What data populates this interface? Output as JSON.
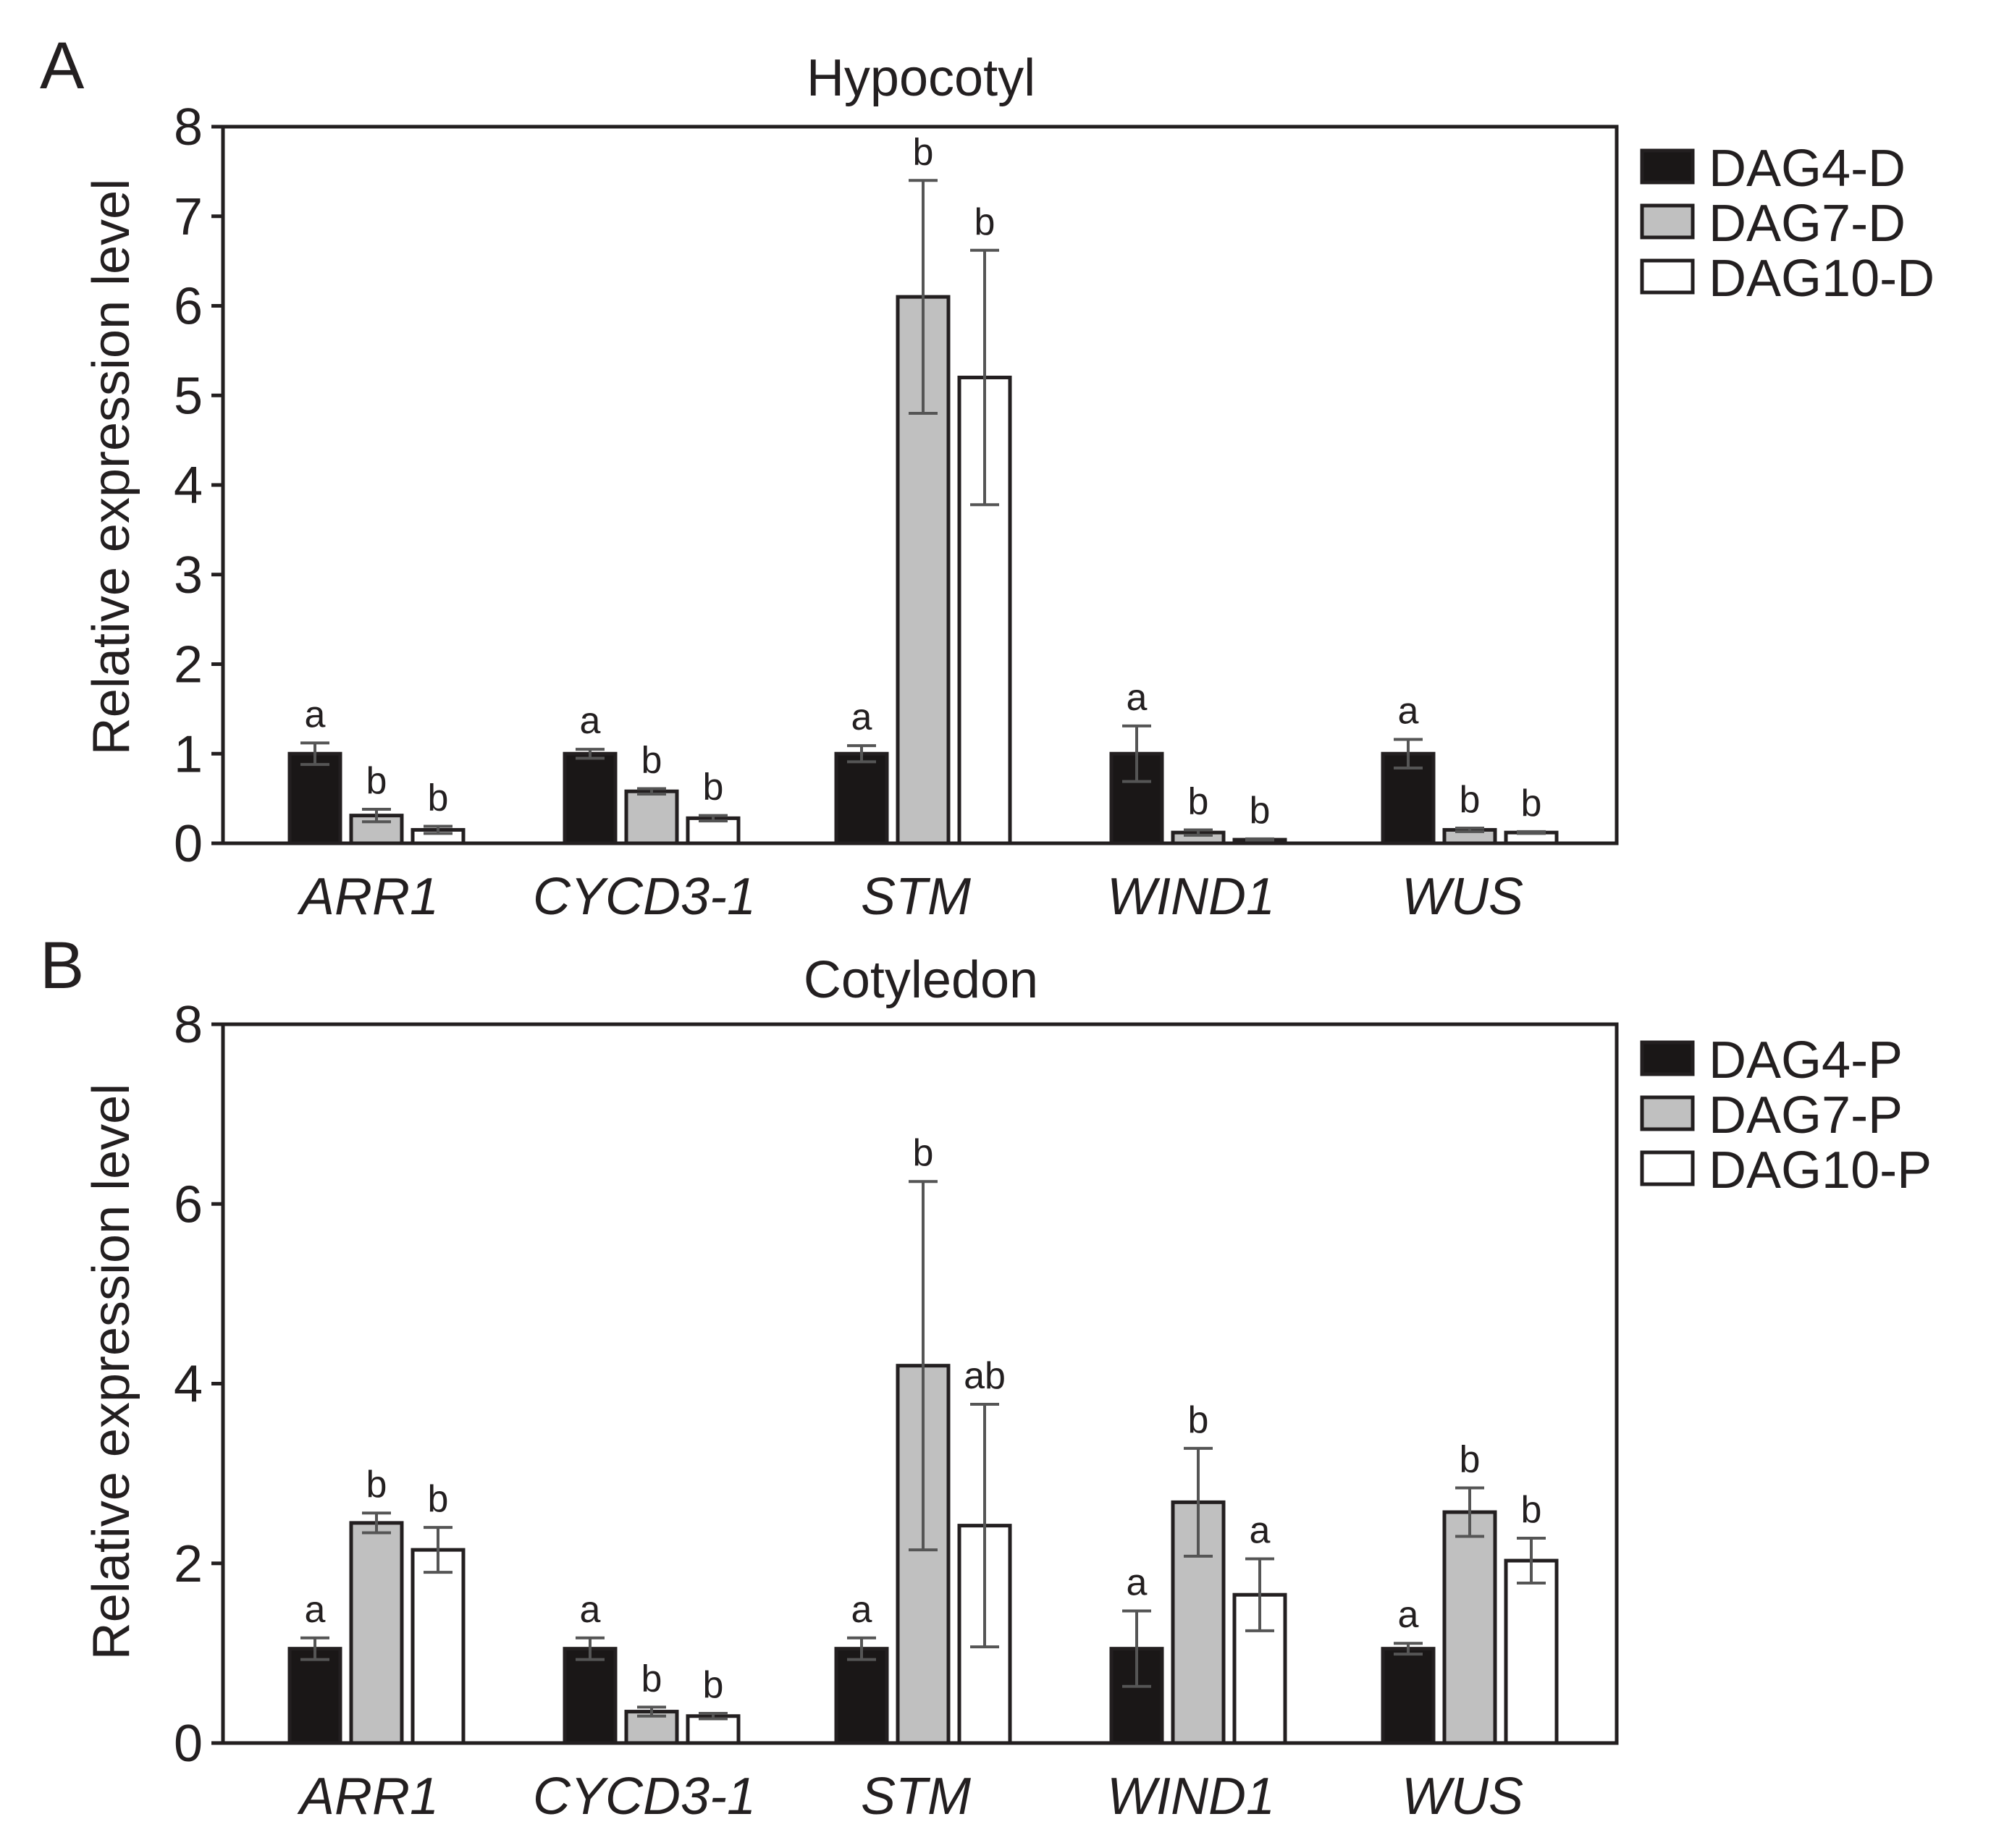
{
  "figure": {
    "panels": [
      "A",
      "B"
    ]
  },
  "colors": {
    "DAG4": "#1a1717",
    "DAG7": "#c0c0c0",
    "DAG10": "#ffffff",
    "axis": "#231f20",
    "error_bar": "#555555"
  },
  "chart_data": [
    {
      "type": "bar",
      "panel": "A",
      "title": "Hypocotyl",
      "xlabel": "",
      "ylabel": "Relative expression level",
      "ylim": [
        0,
        8
      ],
      "yticks": [
        0,
        1,
        2,
        3,
        4,
        5,
        6,
        7,
        8
      ],
      "categories": [
        "ARR1",
        "CYCD3-1",
        "STM",
        "WIND1",
        "WUS"
      ],
      "legend_position": "right",
      "series": [
        {
          "name": "DAG4-D",
          "color_key": "DAG4",
          "values": [
            1.0,
            1.0,
            1.0,
            1.0,
            1.0
          ],
          "errors": [
            0.12,
            0.05,
            0.09,
            0.31,
            0.16
          ],
          "letters": [
            "a",
            "a",
            "a",
            "a",
            "a"
          ]
        },
        {
          "name": "DAG7-D",
          "color_key": "DAG7",
          "values": [
            0.31,
            0.58,
            6.1,
            0.12,
            0.15
          ],
          "errors": [
            0.07,
            0.03,
            1.3,
            0.03,
            0.02
          ],
          "letters": [
            "b",
            "b",
            "b",
            "b",
            "b"
          ]
        },
        {
          "name": "DAG10-D",
          "color_key": "DAG10",
          "values": [
            0.15,
            0.28,
            5.2,
            0.04,
            0.12
          ],
          "errors": [
            0.04,
            0.03,
            1.42,
            0.01,
            0.01
          ],
          "letters": [
            "b",
            "b",
            "b",
            "b",
            "b"
          ]
        }
      ]
    },
    {
      "type": "bar",
      "panel": "B",
      "title": "Cotyledon",
      "xlabel": "",
      "ylabel": "Relative expression level",
      "ylim": [
        0,
        8
      ],
      "yticks": [
        0,
        2,
        4,
        6,
        8
      ],
      "categories": [
        "ARR1",
        "CYCD3-1",
        "STM",
        "WIND1",
        "WUS"
      ],
      "legend_position": "right",
      "series": [
        {
          "name": "DAG4-P",
          "color_key": "DAG4",
          "values": [
            1.05,
            1.05,
            1.05,
            1.05,
            1.05
          ],
          "errors": [
            0.12,
            0.12,
            0.12,
            0.42,
            0.06
          ],
          "letters": [
            "a",
            "a",
            "a",
            "a",
            "a"
          ]
        },
        {
          "name": "DAG7-P",
          "color_key": "DAG7",
          "values": [
            2.45,
            0.35,
            4.2,
            2.68,
            2.57
          ],
          "errors": [
            0.11,
            0.05,
            2.05,
            0.6,
            0.27
          ],
          "letters": [
            "b",
            "b",
            "b",
            "b",
            "b"
          ]
        },
        {
          "name": "DAG10-P",
          "color_key": "DAG10",
          "values": [
            2.15,
            0.3,
            2.42,
            1.65,
            2.03
          ],
          "errors": [
            0.25,
            0.03,
            1.35,
            0.4,
            0.25
          ],
          "letters": [
            "b",
            "b",
            "ab",
            "a",
            "b"
          ]
        }
      ]
    }
  ]
}
